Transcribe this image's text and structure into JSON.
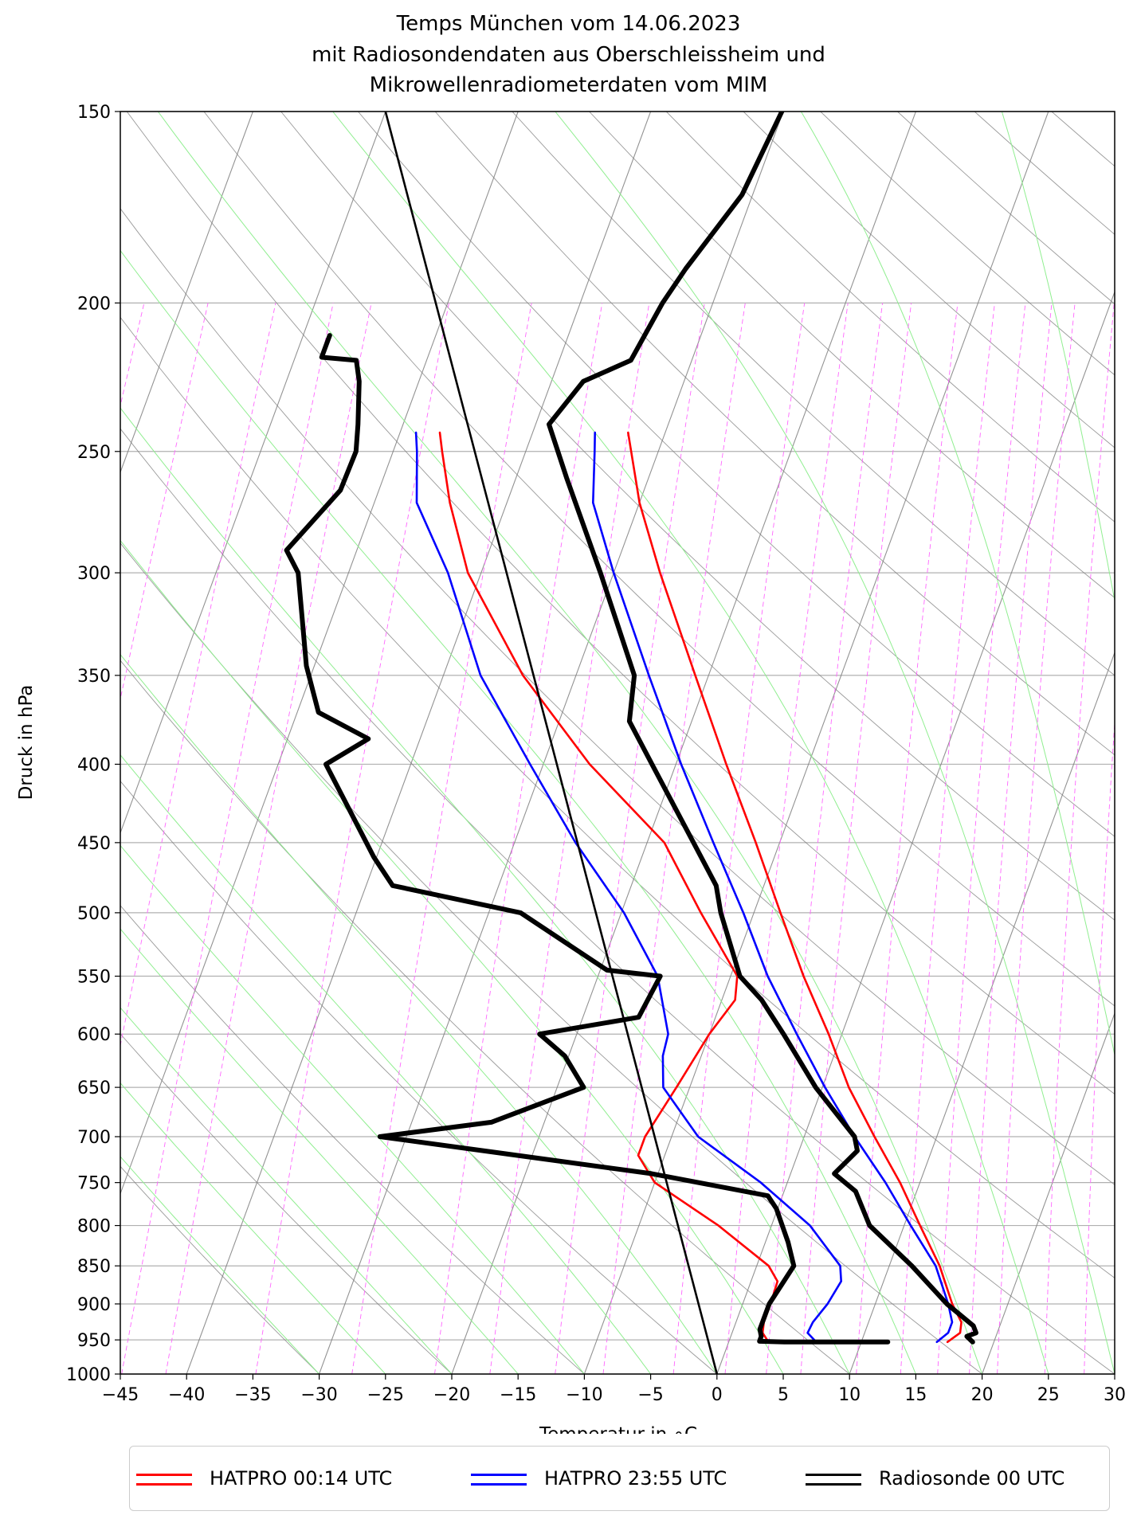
{
  "chart_data": {
    "type": "line",
    "title": "Temps München vom 14.06.2023\nmit Radiosondendaten aus Oberschleissheim und\nMikrowellenradiometerdaten vom MIM",
    "title_lines": [
      "Temps München vom 14.06.2023",
      "mit Radiosondendaten aus Oberschleissheim und",
      "Mikrowellenradiometerdaten vom MIM"
    ],
    "xlabel": "Temperatur in ∘C",
    "ylabel": "Druck in hPa",
    "xlim": [
      -45,
      30
    ],
    "ylim": [
      1000,
      150
    ],
    "y_scale": "log",
    "skew": 35,
    "grid": true,
    "legend_position": "bottom-outside",
    "x_ticks": [
      "−45",
      "−40",
      "−35",
      "−30",
      "−25",
      "−20",
      "−15",
      "−10",
      "−5",
      "0",
      "5",
      "10",
      "15",
      "20",
      "25",
      "30"
    ],
    "y_ticks": [
      "150",
      "200",
      "250",
      "300",
      "350",
      "400",
      "450",
      "500",
      "550",
      "600",
      "650",
      "700",
      "750",
      "800",
      "850",
      "900",
      "950",
      "1000"
    ],
    "series": [
      {
        "name": "HATPRO 00:14 UTC",
        "color": "#ff0000",
        "points": [
          [
            953,
            16.5
          ],
          [
            940,
            17.2
          ],
          [
            925,
            17.0
          ],
          [
            900,
            15.8
          ],
          [
            850,
            13.8
          ],
          [
            800,
            11.2
          ],
          [
            750,
            8.5
          ],
          [
            700,
            5.3
          ],
          [
            650,
            2.0
          ],
          [
            600,
            -1.0
          ],
          [
            550,
            -4.5
          ],
          [
            500,
            -8.0
          ],
          [
            450,
            -11.8
          ],
          [
            400,
            -16.2
          ],
          [
            350,
            -21.0
          ],
          [
            300,
            -26.5
          ],
          [
            270,
            -30.0
          ],
          [
            260,
            -31.0
          ],
          [
            243,
            -32.8
          ]
        ]
      },
      {
        "name": "HATPRO 00:14 UTC",
        "color": "#ff0000",
        "points": [
          [
            953,
            3.0
          ],
          [
            940,
            2.3
          ],
          [
            925,
            2.1
          ],
          [
            900,
            2.1
          ],
          [
            870,
            2.0
          ],
          [
            850,
            0.9
          ],
          [
            800,
            -4.0
          ],
          [
            750,
            -10.0
          ],
          [
            720,
            -12.0
          ],
          [
            700,
            -12.0
          ],
          [
            650,
            -11.0
          ],
          [
            600,
            -10.0
          ],
          [
            570,
            -9.0
          ],
          [
            550,
            -9.5
          ],
          [
            500,
            -14.0
          ],
          [
            450,
            -18.7
          ],
          [
            400,
            -26.5
          ],
          [
            350,
            -34.0
          ],
          [
            300,
            -41.0
          ],
          [
            270,
            -44.3
          ],
          [
            250,
            -46.3
          ],
          [
            243,
            -47.0
          ]
        ]
      },
      {
        "name": "HATPRO 23:55 UTC",
        "color": "#0000ff",
        "points": [
          [
            953,
            15.7
          ],
          [
            940,
            16.3
          ],
          [
            925,
            16.3
          ],
          [
            900,
            15.5
          ],
          [
            850,
            13.5
          ],
          [
            800,
            10.5
          ],
          [
            750,
            7.4
          ],
          [
            700,
            3.8
          ],
          [
            650,
            0.2
          ],
          [
            600,
            -3.4
          ],
          [
            550,
            -7.2
          ],
          [
            500,
            -10.8
          ],
          [
            450,
            -15.0
          ],
          [
            400,
            -19.6
          ],
          [
            350,
            -24.5
          ],
          [
            300,
            -30.0
          ],
          [
            270,
            -33.5
          ],
          [
            250,
            -34.8
          ],
          [
            243,
            -35.3
          ]
        ]
      },
      {
        "name": "HATPRO 23:55 UTC",
        "color": "#0000ff",
        "points": [
          [
            953,
            6.6
          ],
          [
            940,
            5.7
          ],
          [
            925,
            5.8
          ],
          [
            900,
            6.4
          ],
          [
            870,
            6.8
          ],
          [
            850,
            6.3
          ],
          [
            800,
            2.9
          ],
          [
            750,
            -2.0
          ],
          [
            700,
            -8.0
          ],
          [
            650,
            -12.0
          ],
          [
            620,
            -12.9
          ],
          [
            600,
            -13.1
          ],
          [
            550,
            -15.5
          ],
          [
            500,
            -19.8
          ],
          [
            450,
            -25.4
          ],
          [
            400,
            -31.0
          ],
          [
            350,
            -37.2
          ],
          [
            300,
            -42.5
          ],
          [
            270,
            -46.8
          ],
          [
            250,
            -48.2
          ],
          [
            243,
            -48.8
          ]
        ]
      },
      {
        "name": "Radiosonde 00 UTC",
        "color": "#000000",
        "points": [
          [
            953,
            18.4
          ],
          [
            945,
            17.8
          ],
          [
            940,
            18.4
          ],
          [
            930,
            18.0
          ],
          [
            900,
            15.4
          ],
          [
            850,
            11.7
          ],
          [
            800,
            7.4
          ],
          [
            760,
            5.4
          ],
          [
            740,
            3.3
          ],
          [
            715,
            4.4
          ],
          [
            700,
            3.8
          ],
          [
            650,
            -0.5
          ],
          [
            600,
            -4.4
          ],
          [
            570,
            -7.0
          ],
          [
            550,
            -9.3
          ],
          [
            500,
            -12.5
          ],
          [
            480,
            -13.6
          ],
          [
            450,
            -16.5
          ],
          [
            400,
            -21.8
          ],
          [
            375,
            -24.7
          ],
          [
            350,
            -25.6
          ],
          [
            300,
            -31.0
          ],
          [
            260,
            -36.2
          ],
          [
            240,
            -39.0
          ],
          [
            225,
            -37.6
          ],
          [
            218,
            -34.6
          ],
          [
            200,
            -33.8
          ],
          [
            190,
            -33.0
          ],
          [
            170,
            -30.8
          ],
          [
            150,
            -30.1
          ]
        ]
      },
      {
        "name": "Radiosonde 00 UTC",
        "color": "#000000",
        "points": [
          [
            953,
            12.0
          ],
          [
            953,
            4.2
          ],
          [
            952,
            2.3
          ],
          [
            945,
            2.3
          ],
          [
            935,
            2.0
          ],
          [
            900,
            2.0
          ],
          [
            850,
            2.8
          ],
          [
            820,
            1.7
          ],
          [
            780,
            -0.1
          ],
          [
            765,
            -1.1
          ],
          [
            740,
            -10.5
          ],
          [
            700,
            -32.0
          ],
          [
            685,
            -24.0
          ],
          [
            650,
            -18.0
          ],
          [
            620,
            -20.3
          ],
          [
            600,
            -22.8
          ],
          [
            585,
            -15.8
          ],
          [
            550,
            -15.3
          ],
          [
            545,
            -19.5
          ],
          [
            500,
            -27.6
          ],
          [
            480,
            -38.0
          ],
          [
            460,
            -40.2
          ],
          [
            400,
            -46.4
          ],
          [
            385,
            -43.9
          ],
          [
            370,
            -48.4
          ],
          [
            345,
            -50.6
          ],
          [
            300,
            -53.8
          ],
          [
            290,
            -55.3
          ],
          [
            265,
            -52.9
          ],
          [
            250,
            -52.8
          ],
          [
            240,
            -53.4
          ],
          [
            225,
            -54.5
          ],
          [
            218,
            -55.3
          ],
          [
            217,
            -58.0
          ],
          [
            210,
            -58.0
          ]
        ]
      }
    ]
  },
  "legend": {
    "items": [
      {
        "label": "HATPRO 00:14 UTC",
        "color": "#ff0000"
      },
      {
        "label": "HATPRO 23:55 UTC",
        "color": "#0000ff"
      },
      {
        "label": "Radiosonde 00 UTC",
        "color": "#000000"
      }
    ]
  },
  "background_lines": {
    "dry_adiabat_color": "#808080",
    "moist_adiabat_color": "#90ee90",
    "mixing_ratio_color": "#ff66ff",
    "isotherm_color": "#808080"
  }
}
